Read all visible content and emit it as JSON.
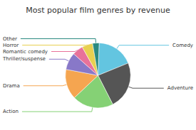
{
  "chart_data": {
    "type": "pie",
    "title": "Most popular film genres by revenue",
    "categories": [
      "Comedy",
      "Adventure",
      "Action",
      "Drama",
      "Thriller/suspense",
      "Romantic comedy",
      "Horror",
      "Other"
    ],
    "values": [
      17,
      22,
      19,
      14,
      8,
      5,
      5,
      3
    ],
    "colors": [
      "#63c5e0",
      "#555555",
      "#85d175",
      "#f5a550",
      "#8878c8",
      "#e8729a",
      "#e8d050",
      "#2a8a80"
    ]
  }
}
